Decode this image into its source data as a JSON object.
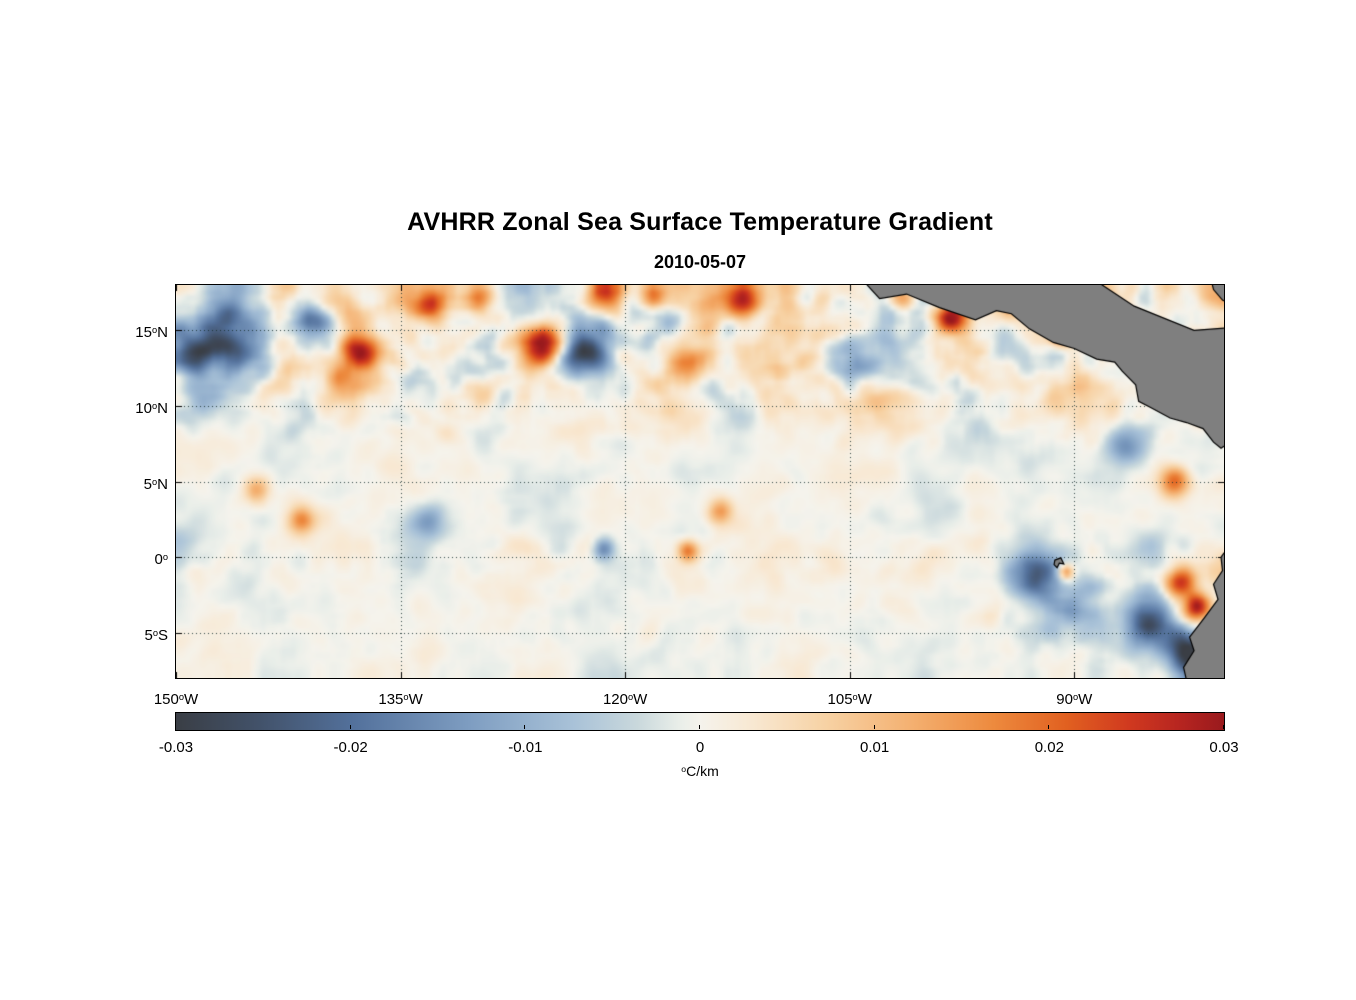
{
  "chart_data": {
    "type": "heatmap",
    "title": "AVHRR Zonal Sea Surface Temperature Gradient",
    "subtitle": "2010-05-07",
    "units": "°C/km",
    "x_axis": {
      "range_lon": [
        -150,
        -80
      ],
      "ticks": [
        {
          "value": -150,
          "label": "150°W"
        },
        {
          "value": -135,
          "label": "135°W"
        },
        {
          "value": -120,
          "label": "120°W"
        },
        {
          "value": -105,
          "label": "105°W"
        },
        {
          "value": -90,
          "label": "90°W"
        }
      ]
    },
    "y_axis": {
      "range_lat": [
        18,
        -8
      ],
      "ticks": [
        {
          "value": 15,
          "label": "15°N"
        },
        {
          "value": 10,
          "label": "10°N"
        },
        {
          "value": 5,
          "label": "5°N"
        },
        {
          "value": 0,
          "label": "0°"
        },
        {
          "value": -5,
          "label": "5°S"
        }
      ]
    },
    "colorbar": {
      "range": [
        -0.03,
        0.03
      ],
      "ticks": [
        -0.03,
        -0.02,
        -0.01,
        0,
        0.01,
        0.02,
        0.03
      ],
      "label": "°C/km",
      "stops": [
        {
          "t": 0.0,
          "color": "#3a3e45"
        },
        {
          "t": 0.08,
          "color": "#42526a"
        },
        {
          "t": 0.17,
          "color": "#53719c"
        },
        {
          "t": 0.28,
          "color": "#7e9dc1"
        },
        {
          "t": 0.38,
          "color": "#a9c2d8"
        },
        {
          "t": 0.44,
          "color": "#c9d8dc"
        },
        {
          "t": 0.48,
          "color": "#e9eee9"
        },
        {
          "t": 0.5,
          "color": "#f5f3ec"
        },
        {
          "t": 0.55,
          "color": "#f8e8d2"
        },
        {
          "t": 0.62,
          "color": "#f7d2a4"
        },
        {
          "t": 0.7,
          "color": "#f4b172"
        },
        {
          "t": 0.78,
          "color": "#ed8a3e"
        },
        {
          "t": 0.85,
          "color": "#e16020"
        },
        {
          "t": 0.91,
          "color": "#d0391f"
        },
        {
          "t": 0.96,
          "color": "#b52420"
        },
        {
          "t": 1.0,
          "color": "#991a1d"
        }
      ]
    },
    "grid": {
      "style": "dotted",
      "color": "rgba(25,50,50,0.9)"
    },
    "land": {
      "color": "#7f7f7f",
      "outline": "#000000",
      "polygons": [
        {
          "name": "central-america",
          "points": [
            [
              -104.3,
              18.5
            ],
            [
              -103.0,
              17.1
            ],
            [
              -101.2,
              17.4
            ],
            [
              -99.0,
              16.5
            ],
            [
              -96.6,
              15.7
            ],
            [
              -95.2,
              16.3
            ],
            [
              -94.2,
              16.1
            ],
            [
              -93.0,
              15.1
            ],
            [
              -91.4,
              14.2
            ],
            [
              -90.0,
              13.8
            ],
            [
              -88.5,
              13.1
            ],
            [
              -87.3,
              12.9
            ],
            [
              -86.8,
              12.3
            ],
            [
              -85.9,
              11.4
            ],
            [
              -85.7,
              10.3
            ],
            [
              -84.9,
              9.9
            ],
            [
              -83.6,
              9.2
            ],
            [
              -82.5,
              8.9
            ],
            [
              -81.4,
              8.5
            ],
            [
              -80.7,
              7.6
            ],
            [
              -80.2,
              7.2
            ],
            [
              -79.6,
              7.6
            ],
            [
              -79.2,
              8.8
            ],
            [
              -79.2,
              15.2
            ],
            [
              -82.0,
              15.0
            ],
            [
              -86.0,
              16.6
            ],
            [
              -88.9,
              18.5
            ]
          ]
        },
        {
          "name": "caribbean-corner-land",
          "points": [
            [
              -80.9,
              18.5
            ],
            [
              -79.3,
              18.5
            ],
            [
              -79.3,
              16.6
            ],
            [
              -80.1,
              17.0
            ],
            [
              -80.7,
              17.7
            ]
          ]
        },
        {
          "name": "south-america",
          "points": [
            [
              -79.3,
              1.2
            ],
            [
              -80.2,
              0.0
            ],
            [
              -80.1,
              -0.9
            ],
            [
              -80.7,
              -1.8
            ],
            [
              -80.4,
              -2.8
            ],
            [
              -81.3,
              -4.0
            ],
            [
              -82.3,
              -5.3
            ],
            [
              -82.0,
              -6.2
            ],
            [
              -82.7,
              -7.3
            ],
            [
              -82.4,
              -8.6
            ],
            [
              -79.0,
              -8.6
            ]
          ]
        },
        {
          "name": "galapagos-islands",
          "points": [
            [
              -91.3,
              -0.2
            ],
            [
              -90.9,
              -0.05
            ],
            [
              -90.7,
              -0.45
            ],
            [
              -91.0,
              -0.4
            ],
            [
              -91.15,
              -0.7
            ],
            [
              -91.35,
              -0.5
            ]
          ]
        }
      ]
    },
    "notable_features": [
      {
        "lon": -149.0,
        "lat": 13.5,
        "value": -0.018,
        "radius": 1.2
      },
      {
        "lon": -148.0,
        "lat": 10.5,
        "value": -0.012,
        "radius": 1.0
      },
      {
        "lon": -146.5,
        "lat": 14.0,
        "value": -0.02,
        "radius": 1.8
      },
      {
        "lon": -140.8,
        "lat": 15.5,
        "value": -0.015,
        "radius": 0.9
      },
      {
        "lon": -137.7,
        "lat": 13.7,
        "value": 0.024,
        "radius": 0.8
      },
      {
        "lon": -133.0,
        "lat": 16.8,
        "value": 0.016,
        "radius": 0.7
      },
      {
        "lon": -129.7,
        "lat": 17.2,
        "value": 0.02,
        "radius": 0.7
      },
      {
        "lon": -125.4,
        "lat": 14.1,
        "value": 0.03,
        "radius": 0.9
      },
      {
        "lon": -122.7,
        "lat": 13.6,
        "value": -0.022,
        "radius": 1.1
      },
      {
        "lon": -121.3,
        "lat": 17.5,
        "value": 0.026,
        "radius": 0.8
      },
      {
        "lon": -118.0,
        "lat": 17.3,
        "value": 0.018,
        "radius": 0.6
      },
      {
        "lon": -112.3,
        "lat": 17.0,
        "value": 0.022,
        "radius": 0.8
      },
      {
        "lon": -116.2,
        "lat": 13.0,
        "value": 0.014,
        "radius": 0.9
      },
      {
        "lon": -105.2,
        "lat": 13.0,
        "value": -0.014,
        "radius": 1.0
      },
      {
        "lon": -101.3,
        "lat": 17.2,
        "value": 0.018,
        "radius": 0.6
      },
      {
        "lon": -98.3,
        "lat": 15.8,
        "value": 0.022,
        "radius": 0.7
      },
      {
        "lon": -90.9,
        "lat": 14.5,
        "value": 0.018,
        "radius": 0.5
      },
      {
        "lon": -86.4,
        "lat": 7.4,
        "value": -0.016,
        "radius": 0.9
      },
      {
        "lon": -83.3,
        "lat": 5.0,
        "value": 0.02,
        "radius": 0.7
      },
      {
        "lon": -144.6,
        "lat": 4.4,
        "value": 0.014,
        "radius": 0.6
      },
      {
        "lon": -141.6,
        "lat": 2.5,
        "value": 0.016,
        "radius": 0.6
      },
      {
        "lon": -133.2,
        "lat": 2.4,
        "value": -0.013,
        "radius": 0.8
      },
      {
        "lon": -121.4,
        "lat": 0.5,
        "value": -0.016,
        "radius": 0.5
      },
      {
        "lon": -115.8,
        "lat": 0.4,
        "value": 0.018,
        "radius": 0.5
      },
      {
        "lon": -113.7,
        "lat": 3.0,
        "value": 0.014,
        "radius": 0.6
      },
      {
        "lon": -92.6,
        "lat": -1.0,
        "value": -0.024,
        "radius": 1.2
      },
      {
        "lon": -90.6,
        "lat": -1.0,
        "value": 0.024,
        "radius": 0.4
      },
      {
        "lon": -82.9,
        "lat": -1.8,
        "value": 0.026,
        "radius": 0.7
      },
      {
        "lon": -81.8,
        "lat": -3.3,
        "value": 0.03,
        "radius": 0.7
      },
      {
        "lon": -84.9,
        "lat": -4.3,
        "value": -0.026,
        "radius": 1.1
      },
      {
        "lon": -82.5,
        "lat": -6.2,
        "value": -0.03,
        "radius": 1.0
      },
      {
        "lon": -81.0,
        "lat": -7.5,
        "value": -0.028,
        "radius": 1.0
      }
    ]
  }
}
